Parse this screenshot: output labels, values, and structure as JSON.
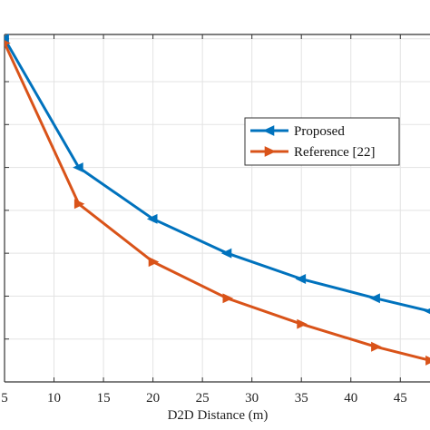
{
  "chart_data": {
    "type": "line",
    "title": "",
    "xlabel": "D2D Distance (m)",
    "ylabel": "",
    "xlim": [
      5,
      48
    ],
    "ylim": [
      0,
      8.1
    ],
    "xticks": [
      5,
      10,
      15,
      20,
      25,
      30,
      35,
      40,
      45
    ],
    "xtick_labels": [
      "5",
      "10",
      "15",
      "20",
      "25",
      "30",
      "35",
      "40",
      "45"
    ],
    "yticks": [
      0,
      1,
      2,
      3,
      4,
      5,
      6,
      7,
      8
    ],
    "grid": true,
    "legend_position": "center-right",
    "series": [
      {
        "name": "Proposed",
        "color": "#0072BD",
        "marker": "left-triangle",
        "x": [
          5,
          12.5,
          20,
          27.5,
          35,
          42.5,
          48
        ],
        "y": [
          8.0,
          5.0,
          3.8,
          3.0,
          2.4,
          1.95,
          1.65
        ]
      },
      {
        "name": "Reference [22]",
        "color": "#D95319",
        "marker": "right-triangle",
        "x": [
          5,
          12.5,
          20,
          27.5,
          35,
          42.5,
          48
        ],
        "y": [
          7.9,
          4.15,
          2.8,
          1.95,
          1.35,
          0.82,
          0.5
        ]
      }
    ]
  }
}
